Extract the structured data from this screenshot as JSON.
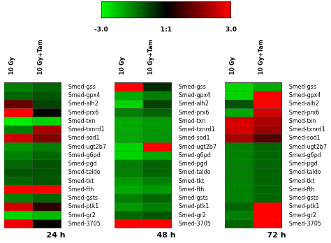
{
  "chart_data": {
    "type": "heatmap",
    "colors": [
      "#00ff00",
      "#000000",
      "#ff0000"
    ],
    "color_range": [
      -3.0,
      3.0
    ],
    "colorbar_ticks": [
      {
        "value": -3.0,
        "label": "-3.0"
      },
      {
        "value": 0,
        "label": "1:1"
      },
      {
        "value": 3.0,
        "label": "3.0"
      }
    ],
    "categories": [
      "Smed-gss",
      "Smed-gpx4",
      "Smed-alh2",
      "Smed-prx6",
      "Smed-txn",
      "Smed-txnrd1",
      "Smed-sod1",
      "Smed-ugt2b7",
      "Smed-g6pd",
      "Smed-pgd",
      "Smed-taldo",
      "Smed-tkt",
      "Smed-fth",
      "Smed-gsts",
      "Smed-ptk1",
      "Smed-gr2",
      "Smed-3705"
    ],
    "columns": [
      "10 Gy",
      "10 Gy+Tam"
    ],
    "panels": [
      {
        "title": "24 h",
        "cells": [
          [
            -1.5,
            -1.2
          ],
          [
            -1.2,
            -1.0
          ],
          [
            1.2,
            -0.8
          ],
          [
            3.0,
            -0.1
          ],
          [
            -2.8,
            -2.5
          ],
          [
            -1.5,
            2.0
          ],
          [
            2.5,
            1.5
          ],
          [
            -1.8,
            -1.5
          ],
          [
            -1.5,
            -1.2
          ],
          [
            -1.2,
            -1.0
          ],
          [
            -1.0,
            -1.0
          ],
          [
            -1.2,
            -1.0
          ],
          [
            3.0,
            3.0
          ],
          [
            -1.5,
            -1.2
          ],
          [
            2.5,
            0.5
          ],
          [
            -2.5,
            -2.2
          ],
          [
            2.8,
            0.0
          ]
        ]
      },
      {
        "title": "48 h",
        "cells": [
          [
            3.0,
            -0.5
          ],
          [
            -2.0,
            -1.5
          ],
          [
            -2.5,
            -0.8
          ],
          [
            -1.5,
            -1.2
          ],
          [
            -2.0,
            -1.8
          ],
          [
            -2.0,
            -1.8
          ],
          [
            -2.0,
            -1.8
          ],
          [
            -2.5,
            3.0
          ],
          [
            -2.5,
            -2.0
          ],
          [
            -1.5,
            -1.2
          ],
          [
            -1.5,
            -1.2
          ],
          [
            -1.8,
            -1.5
          ],
          [
            -2.0,
            -1.8
          ],
          [
            -1.5,
            -1.2
          ],
          [
            -1.8,
            -1.5
          ],
          [
            -1.2,
            -1.0
          ],
          [
            3.0,
            3.0
          ]
        ]
      },
      {
        "title": "72 h",
        "cells": [
          [
            -2.5,
            -2.0
          ],
          [
            -2.5,
            3.0
          ],
          [
            -1.0,
            3.0
          ],
          [
            -2.0,
            2.5
          ],
          [
            2.5,
            2.0
          ],
          [
            2.5,
            1.8
          ],
          [
            2.0,
            1.0
          ],
          [
            -1.5,
            -1.2
          ],
          [
            -1.5,
            -1.2
          ],
          [
            -1.5,
            -1.2
          ],
          [
            -1.5,
            -1.2
          ],
          [
            -1.5,
            -1.2
          ],
          [
            -1.5,
            -1.2
          ],
          [
            -1.5,
            -1.2
          ],
          [
            -1.2,
            3.0
          ],
          [
            -1.5,
            3.0
          ],
          [
            -1.2,
            3.0
          ]
        ]
      }
    ]
  }
}
